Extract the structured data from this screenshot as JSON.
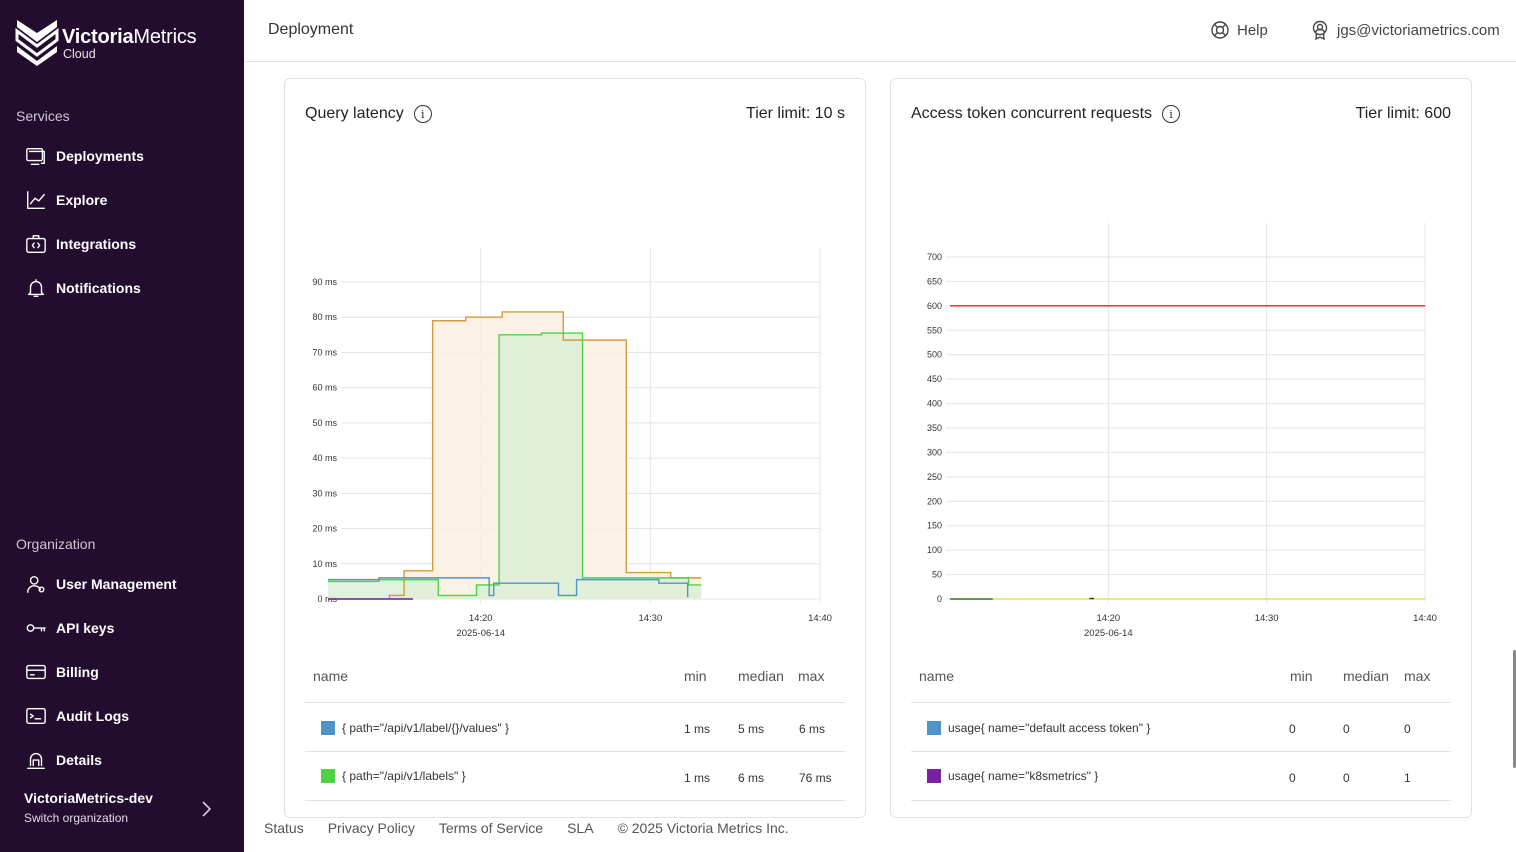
{
  "sidebar": {
    "logo_name_bold": "Victoria",
    "logo_name": "Metrics",
    "logo_sub": "Cloud",
    "services_label": "Services",
    "services": [
      {
        "label": "Deployments",
        "icon": "deployments-icon"
      },
      {
        "label": "Explore",
        "icon": "chart-line-icon"
      },
      {
        "label": "Integrations",
        "icon": "integrations-icon"
      },
      {
        "label": "Notifications",
        "icon": "bell-icon"
      }
    ],
    "organization_label": "Organization",
    "organization": [
      {
        "label": "User Management",
        "icon": "user-management-icon"
      },
      {
        "label": "API keys",
        "icon": "key-icon"
      },
      {
        "label": "Billing",
        "icon": "billing-icon"
      },
      {
        "label": "Audit Logs",
        "icon": "terminal-icon"
      },
      {
        "label": "Details",
        "icon": "details-icon"
      }
    ],
    "org_name": "VictoriaMetrics-dev",
    "org_switch": "Switch organization"
  },
  "header": {
    "title": "Deployment",
    "help": "Help",
    "user": "jgs@victoriametrics.com"
  },
  "cards": {
    "latency": {
      "title": "Query latency",
      "tier_limit": "Tier limit: 10 s",
      "table": {
        "headers": [
          "name",
          "min",
          "median",
          "max"
        ],
        "rows": [
          {
            "color": "#4f93c9",
            "name": "{ path=\"/api/v1/label/{}/values\" }",
            "min": "1 ms",
            "median": "5 ms",
            "max": "6 ms"
          },
          {
            "color": "#4fd344",
            "name": "{ path=\"/api/v1/labels\" }",
            "min": "1 ms",
            "median": "6 ms",
            "max": "76 ms"
          }
        ]
      }
    },
    "tokens": {
      "title": "Access token concurrent requests",
      "tier_limit": "Tier limit: 600",
      "table": {
        "headers": [
          "name",
          "min",
          "median",
          "max"
        ],
        "rows": [
          {
            "color": "#4f93c9",
            "name": "usage{ name=\"default access token\" }",
            "min": "0",
            "median": "0",
            "max": "0"
          },
          {
            "color": "#7a1fa2",
            "name": "usage{ name=\"k8smetrics\" }",
            "min": "0",
            "median": "0",
            "max": "1"
          }
        ]
      }
    }
  },
  "footer": {
    "links": [
      "Status",
      "Privacy Policy",
      "Terms of Service",
      "SLA"
    ],
    "copyright": "© 2025 Victoria Metrics Inc."
  },
  "chart_data": [
    {
      "type": "area",
      "title": "Query latency",
      "x_ticks": [
        "14:20",
        "14:30",
        "14:40"
      ],
      "x_tick_sub": [
        "2025-06-14",
        "",
        ""
      ],
      "x_range": [
        "14:12",
        "14:40"
      ],
      "y_ticks": [
        "0 ms",
        "10 ms",
        "20 ms",
        "30 ms",
        "40 ms",
        "50 ms",
        "60 ms",
        "70 ms",
        "80 ms",
        "90 ms"
      ],
      "ylim": [
        0,
        90
      ],
      "series": [
        {
          "color": "#d39a3e",
          "fill": "#fbeee0",
          "points": [
            [
              14.617,
              0
            ],
            [
              14.617,
              1
            ],
            [
              15.483,
              1
            ],
            [
              15.483,
              8
            ],
            [
              17.167,
              8
            ],
            [
              17.167,
              79
            ],
            [
              19.117,
              79
            ],
            [
              19.117,
              80
            ],
            [
              21.267,
              80
            ],
            [
              21.267,
              81.5
            ],
            [
              24.867,
              81.5
            ],
            [
              24.867,
              73.5
            ],
            [
              28.583,
              73.5
            ],
            [
              28.583,
              7.5
            ],
            [
              31.2,
              7.5
            ],
            [
              31.2,
              6
            ],
            [
              33.0,
              6
            ]
          ]
        },
        {
          "color": "#4fd344",
          "fill": "#dcefd6",
          "points": [
            [
              11.0,
              5
            ],
            [
              14.0,
              5
            ],
            [
              14.0,
              5.5
            ],
            [
              17.5,
              5.5
            ],
            [
              17.5,
              1
            ],
            [
              19.75,
              1
            ],
            [
              19.75,
              4
            ],
            [
              21.083,
              4
            ],
            [
              21.083,
              75
            ],
            [
              23.583,
              75
            ],
            [
              23.583,
              75.5
            ],
            [
              26.0,
              75.5
            ],
            [
              26.0,
              6
            ],
            [
              32.25,
              6
            ],
            [
              32.25,
              4
            ],
            [
              33.0,
              4
            ]
          ]
        },
        {
          "color": "#4f93c9",
          "fill": "none",
          "points": [
            [
              11.0,
              5.5
            ],
            [
              14.0,
              5.5
            ],
            [
              14.0,
              6
            ],
            [
              20.5,
              6
            ],
            [
              20.5,
              1
            ],
            [
              20.767,
              1
            ],
            [
              20.767,
              4.5
            ],
            [
              24.583,
              4.5
            ],
            [
              24.583,
              1
            ],
            [
              25.65,
              1
            ],
            [
              25.65,
              5.5
            ],
            [
              30.5,
              5.5
            ],
            [
              30.5,
              4.5
            ],
            [
              32.2,
              4.5
            ],
            [
              32.2,
              0.5
            ]
          ]
        },
        {
          "color": "#6a1b9a",
          "fill": "none",
          "points": [
            [
              11.0,
              0
            ],
            [
              16.0,
              0
            ]
          ]
        }
      ]
    },
    {
      "type": "line",
      "title": "Access token concurrent requests",
      "x_ticks": [
        "14:20",
        "14:30",
        "14:40"
      ],
      "x_tick_sub": [
        "2025-06-14",
        "",
        ""
      ],
      "x_range": [
        "14:10",
        "14:40"
      ],
      "y_ticks": [
        "0",
        "50",
        "100",
        "150",
        "200",
        "250",
        "300",
        "350",
        "400",
        "450",
        "500",
        "550",
        "600",
        "650",
        "700"
      ],
      "ylim": [
        0,
        700
      ],
      "series": [
        {
          "color": "#d62728",
          "points": [
            [
              10.0,
              600
            ],
            [
              40.0,
              600
            ]
          ]
        },
        {
          "color": "#e4e455",
          "points": [
            [
              10.0,
              0
            ],
            [
              40.0,
              0
            ]
          ]
        },
        {
          "color": "#2e7d32",
          "points": [
            [
              10.0,
              0
            ],
            [
              12.7,
              0
            ]
          ]
        },
        {
          "color": "#333333",
          "points": [
            [
              18.8,
              1
            ],
            [
              19.1,
              1
            ]
          ]
        }
      ]
    }
  ]
}
